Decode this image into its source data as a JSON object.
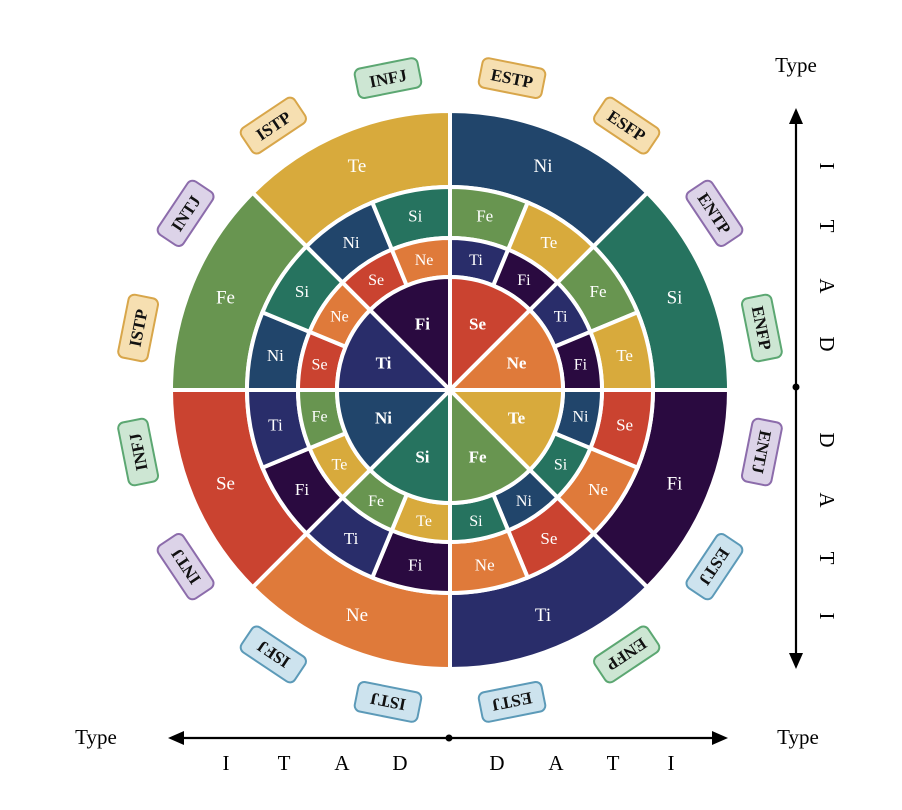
{
  "colors": {
    "Ni": "#21456b",
    "Si": "#26735f",
    "Fe": "#689550",
    "Te": "#d8aa3c",
    "Se": "#ca4330",
    "Ne": "#df7a3a",
    "Fi": "#2a0a40",
    "Ti": "#292d6a",
    "tag_green_fill": "#cde6d3",
    "tag_green_stroke": "#5ca772",
    "tag_yellow_fill": "#f6dfb1",
    "tag_yellow_stroke": "#d8a64a",
    "tag_purple_fill": "#dcd3e8",
    "tag_purple_stroke": "#8c6cab",
    "tag_blue_fill": "#cde3ee",
    "tag_blue_stroke": "#5c9ab8"
  },
  "rings": {
    "outer": [
      {
        "label": "Ni",
        "color": "Ni"
      },
      {
        "label": "Si",
        "color": "Si"
      },
      {
        "label": "Fi",
        "color": "Fi"
      },
      {
        "label": "Ti",
        "color": "Ti"
      },
      {
        "label": "Ne",
        "color": "Ne"
      },
      {
        "label": "Se",
        "color": "Se"
      },
      {
        "label": "Fe",
        "color": "Fe"
      },
      {
        "label": "Te",
        "color": "Te"
      }
    ],
    "second": [
      {
        "label": "Fe",
        "color": "Fe"
      },
      {
        "label": "Te",
        "color": "Te"
      },
      {
        "label": "Fe",
        "color": "Fe"
      },
      {
        "label": "Te",
        "color": "Te"
      },
      {
        "label": "Se",
        "color": "Se"
      },
      {
        "label": "Ne",
        "color": "Ne"
      },
      {
        "label": "Se",
        "color": "Se"
      },
      {
        "label": "Ne",
        "color": "Ne"
      },
      {
        "label": "Fi",
        "color": "Fi"
      },
      {
        "label": "Ti",
        "color": "Ti"
      },
      {
        "label": "Fi",
        "color": "Fi"
      },
      {
        "label": "Ti",
        "color": "Ti"
      },
      {
        "label": "Ni",
        "color": "Ni"
      },
      {
        "label": "Si",
        "color": "Si"
      },
      {
        "label": "Ni",
        "color": "Ni"
      },
      {
        "label": "Si",
        "color": "Si"
      }
    ],
    "third": [
      {
        "label": "Ti",
        "color": "Ti"
      },
      {
        "label": "Fi",
        "color": "Fi"
      },
      {
        "label": "Ti",
        "color": "Ti"
      },
      {
        "label": "Fi",
        "color": "Fi"
      },
      {
        "label": "Ni",
        "color": "Ni"
      },
      {
        "label": "Si",
        "color": "Si"
      },
      {
        "label": "Ni",
        "color": "Ni"
      },
      {
        "label": "Si",
        "color": "Si"
      },
      {
        "label": "Te",
        "color": "Te"
      },
      {
        "label": "Fe",
        "color": "Fe"
      },
      {
        "label": "Te",
        "color": "Te"
      },
      {
        "label": "Fe",
        "color": "Fe"
      },
      {
        "label": "Se",
        "color": "Se"
      },
      {
        "label": "Ne",
        "color": "Ne"
      },
      {
        "label": "Se",
        "color": "Se"
      },
      {
        "label": "Ne",
        "color": "Ne"
      }
    ],
    "center": [
      {
        "label": "Se",
        "color": "Se"
      },
      {
        "label": "Ne",
        "color": "Ne"
      },
      {
        "label": "Te",
        "color": "Te"
      },
      {
        "label": "Fe",
        "color": "Fe"
      },
      {
        "label": "Si",
        "color": "Si"
      },
      {
        "label": "Ni",
        "color": "Ni"
      },
      {
        "label": "Ti",
        "color": "Ti"
      },
      {
        "label": "Fi",
        "color": "Fi"
      }
    ]
  },
  "tags": [
    {
      "text": "ESTP",
      "style": "yellow"
    },
    {
      "text": "ESFP",
      "style": "yellow"
    },
    {
      "text": "ENTP",
      "style": "purple"
    },
    {
      "text": "ENFP",
      "style": "green"
    },
    {
      "text": "ENTJ",
      "style": "purple"
    },
    {
      "text": "ESTJ",
      "style": "blue"
    },
    {
      "text": "ENFP",
      "style": "green"
    },
    {
      "text": "ESTJ",
      "style": "blue"
    },
    {
      "text": "ISTJ",
      "style": "blue"
    },
    {
      "text": "ISFJ",
      "style": "blue"
    },
    {
      "text": "INTJ",
      "style": "purple"
    },
    {
      "text": "INFJ",
      "style": "green"
    },
    {
      "text": "ISTP",
      "style": "yellow"
    },
    {
      "text": "INTJ",
      "style": "purple"
    },
    {
      "text": "ISTP",
      "style": "yellow"
    },
    {
      "text": "INFJ",
      "style": "green"
    }
  ],
  "vertical_axis": {
    "title": "Type",
    "upper_letters": [
      "I",
      "T",
      "A",
      "D"
    ],
    "lower_letters": [
      "D",
      "A",
      "T",
      "I"
    ]
  },
  "horizontal_axis": {
    "left_title": "Type",
    "right_title": "Type",
    "left_letters": [
      "I",
      "T",
      "A",
      "D"
    ],
    "right_letters": [
      "D",
      "A",
      "T",
      "I"
    ]
  }
}
